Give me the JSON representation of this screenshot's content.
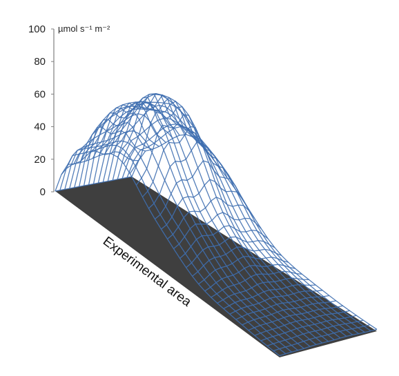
{
  "chart_data": {
    "type": "surface",
    "title": "",
    "ylabel": "µmol s⁻¹ m⁻²",
    "xlabel": "Experimental area",
    "ylim": [
      0,
      100
    ],
    "yticks": [
      0,
      20,
      40,
      60,
      80,
      100
    ],
    "grid": false,
    "legend": "none",
    "peak_value": 67,
    "colors": {
      "mesh": "#3f6fb0",
      "mesh_highlight": "#9fb4e0",
      "floor": "#3f3f3f",
      "axis": "#7f7f7f"
    }
  }
}
